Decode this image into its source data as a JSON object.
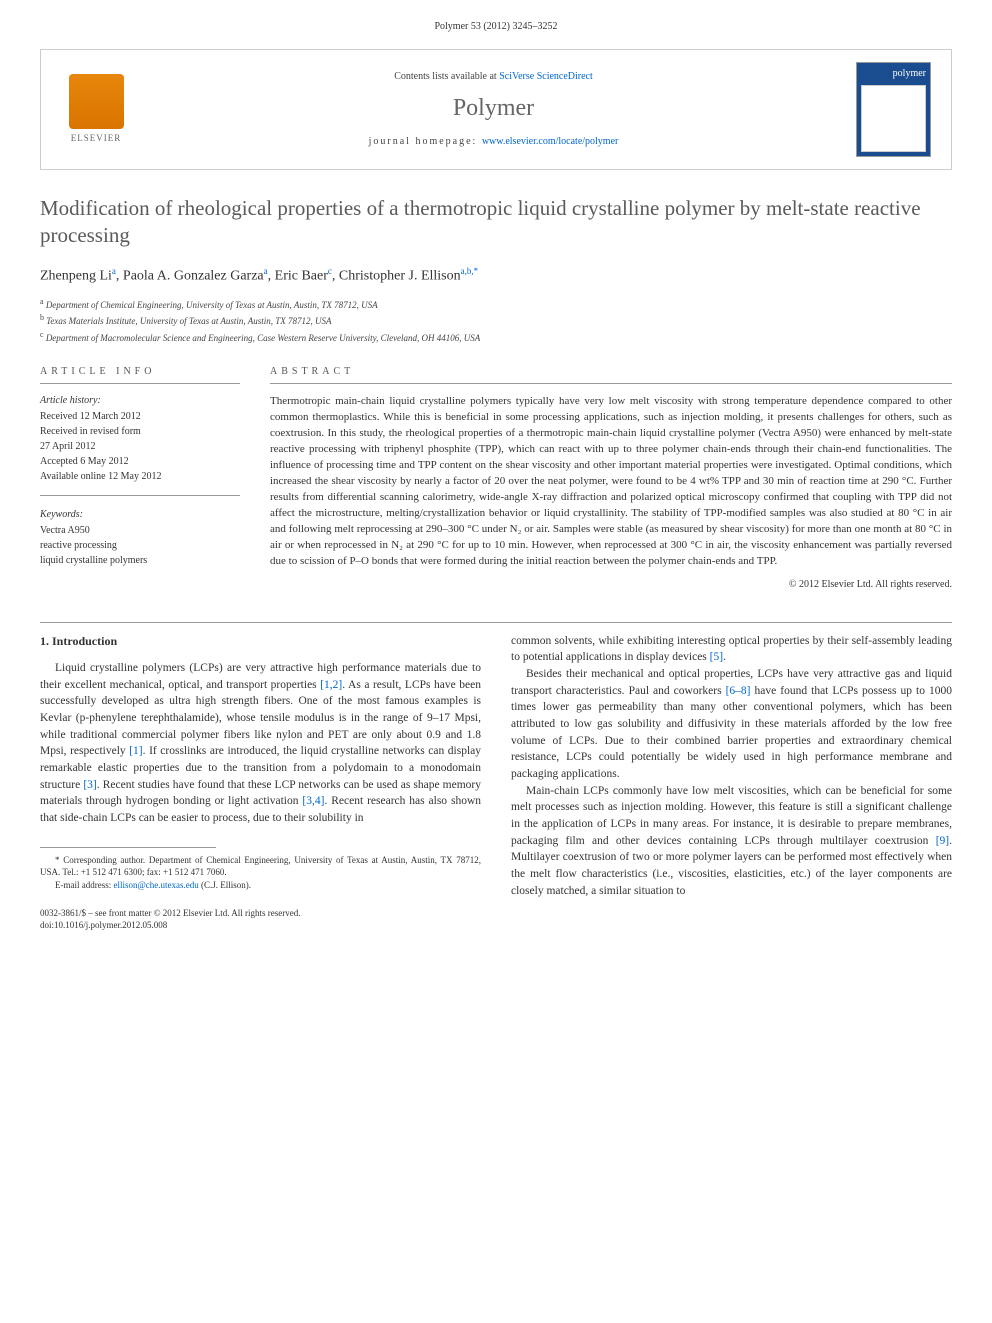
{
  "journal_ref": "Polymer 53 (2012) 3245–3252",
  "header": {
    "contents_prefix": "Contents lists available at ",
    "contents_link": "SciVerse ScienceDirect",
    "journal_name": "Polymer",
    "homepage_prefix": "journal homepage: ",
    "homepage_url": "www.elsevier.com/locate/polymer",
    "elsevier_label": "ELSEVIER",
    "cover_label": "polymer"
  },
  "title": "Modification of rheological properties of a thermotropic liquid crystalline polymer by melt-state reactive processing",
  "authors_html": "Zhenpeng Li<sup>a</sup>, Paola A. Gonzalez Garza<sup>a</sup>, Eric Baer<sup>c</sup>, Christopher J. Ellison<sup>a,b,*</sup>",
  "affiliations": [
    "Department of Chemical Engineering, University of Texas at Austin, Austin, TX 78712, USA",
    "Texas Materials Institute, University of Texas at Austin, Austin, TX 78712, USA",
    "Department of Macromolecular Science and Engineering, Case Western Reserve University, Cleveland, OH 44106, USA"
  ],
  "aff_markers": [
    "a",
    "b",
    "c"
  ],
  "info": {
    "heading": "ARTICLE INFO",
    "history_label": "Article history:",
    "history": [
      "Received 12 March 2012",
      "Received in revised form",
      "27 April 2012",
      "Accepted 6 May 2012",
      "Available online 12 May 2012"
    ],
    "keywords_label": "Keywords:",
    "keywords": [
      "Vectra A950",
      "reactive processing",
      "liquid crystalline polymers"
    ]
  },
  "abstract": {
    "heading": "ABSTRACT",
    "text": "Thermotropic main-chain liquid crystalline polymers typically have very low melt viscosity with strong temperature dependence compared to other common thermoplastics. While this is beneficial in some processing applications, such as injection molding, it presents challenges for others, such as coextrusion. In this study, the rheological properties of a thermotropic main-chain liquid crystalline polymer (Vectra A950) were enhanced by melt-state reactive processing with triphenyl phosphite (TPP), which can react with up to three polymer chain-ends through their chain-end functionalities. The influence of processing time and TPP content on the shear viscosity and other important material properties were investigated. Optimal conditions, which increased the shear viscosity by nearly a factor of 20 over the neat polymer, were found to be 4 wt% TPP and 30 min of reaction time at 290 °C. Further results from differential scanning calorimetry, wide-angle X-ray diffraction and polarized optical microscopy confirmed that coupling with TPP did not affect the microstructure, melting/crystallization behavior or liquid crystallinity. The stability of TPP-modified samples was also studied at 80 °C in air and following melt reprocessing at 290–300 °C under N₂ or air. Samples were stable (as measured by shear viscosity) for more than one month at 80 °C in air or when reprocessed in N₂ at 290 °C for up to 10 min. However, when reprocessed at 300 °C in air, the viscosity enhancement was partially reversed due to scission of P–O bonds that were formed during the initial reaction between the polymer chain-ends and TPP.",
    "copyright": "© 2012 Elsevier Ltd. All rights reserved."
  },
  "section1": {
    "heading": "1. Introduction",
    "p1": "Liquid crystalline polymers (LCPs) are very attractive high performance materials due to their excellent mechanical, optical, and transport properties [1,2]. As a result, LCPs have been successfully developed as ultra high strength fibers. One of the most famous examples is Kevlar (p-phenylene terephthalamide), whose tensile modulus is in the range of 9–17 Mpsi, while traditional commercial polymer fibers like nylon and PET are only about 0.9 and 1.8 Mpsi, respectively [1]. If crosslinks are introduced, the liquid crystalline networks can display remarkable elastic properties due to the transition from a polydomain to a monodomain structure [3]. Recent studies have found that these LCP networks can be used as shape memory materials through hydrogen bonding or light activation [3,4]. Recent research has also shown that side-chain LCPs can be easier to process, due to their solubility in",
    "p2": "common solvents, while exhibiting interesting optical properties by their self-assembly leading to potential applications in display devices [5].",
    "p3": "Besides their mechanical and optical properties, LCPs have very attractive gas and liquid transport characteristics. Paul and coworkers [6–8] have found that LCPs possess up to 1000 times lower gas permeability than many other conventional polymers, which has been attributed to low gas solubility and diffusivity in these materials afforded by the low free volume of LCPs. Due to their combined barrier properties and extraordinary chemical resistance, LCPs could potentially be widely used in high performance membrane and packaging applications.",
    "p4": "Main-chain LCPs commonly have low melt viscosities, which can be beneficial for some melt processes such as injection molding. However, this feature is still a significant challenge in the application of LCPs in many areas. For instance, it is desirable to prepare membranes, packaging film and other devices containing LCPs through multilayer coextrusion [9]. Multilayer coextrusion of two or more polymer layers can be performed most effectively when the melt flow characteristics (i.e., viscosities, elasticities, etc.) of the layer components are closely matched, a similar situation to"
  },
  "footnote": {
    "corresp": "* Corresponding author. Department of Chemical Engineering, University of Texas at Austin, Austin, TX 78712, USA. Tel.: +1 512 471 6300; fax: +1 512 471 7060.",
    "email_label": "E-mail address: ",
    "email": "ellison@che.utexas.edu",
    "email_suffix": " (C.J. Ellison)."
  },
  "footer": {
    "line1": "0032-3861/$ – see front matter © 2012 Elsevier Ltd. All rights reserved.",
    "line2": "doi:10.1016/j.polymer.2012.05.008"
  },
  "refs": {
    "r12": "[1,2]",
    "r1": "[1]",
    "r3": "[3]",
    "r34": "[3,4]",
    "r5": "[5]",
    "r68": "[6–8]",
    "r9": "[9]"
  }
}
